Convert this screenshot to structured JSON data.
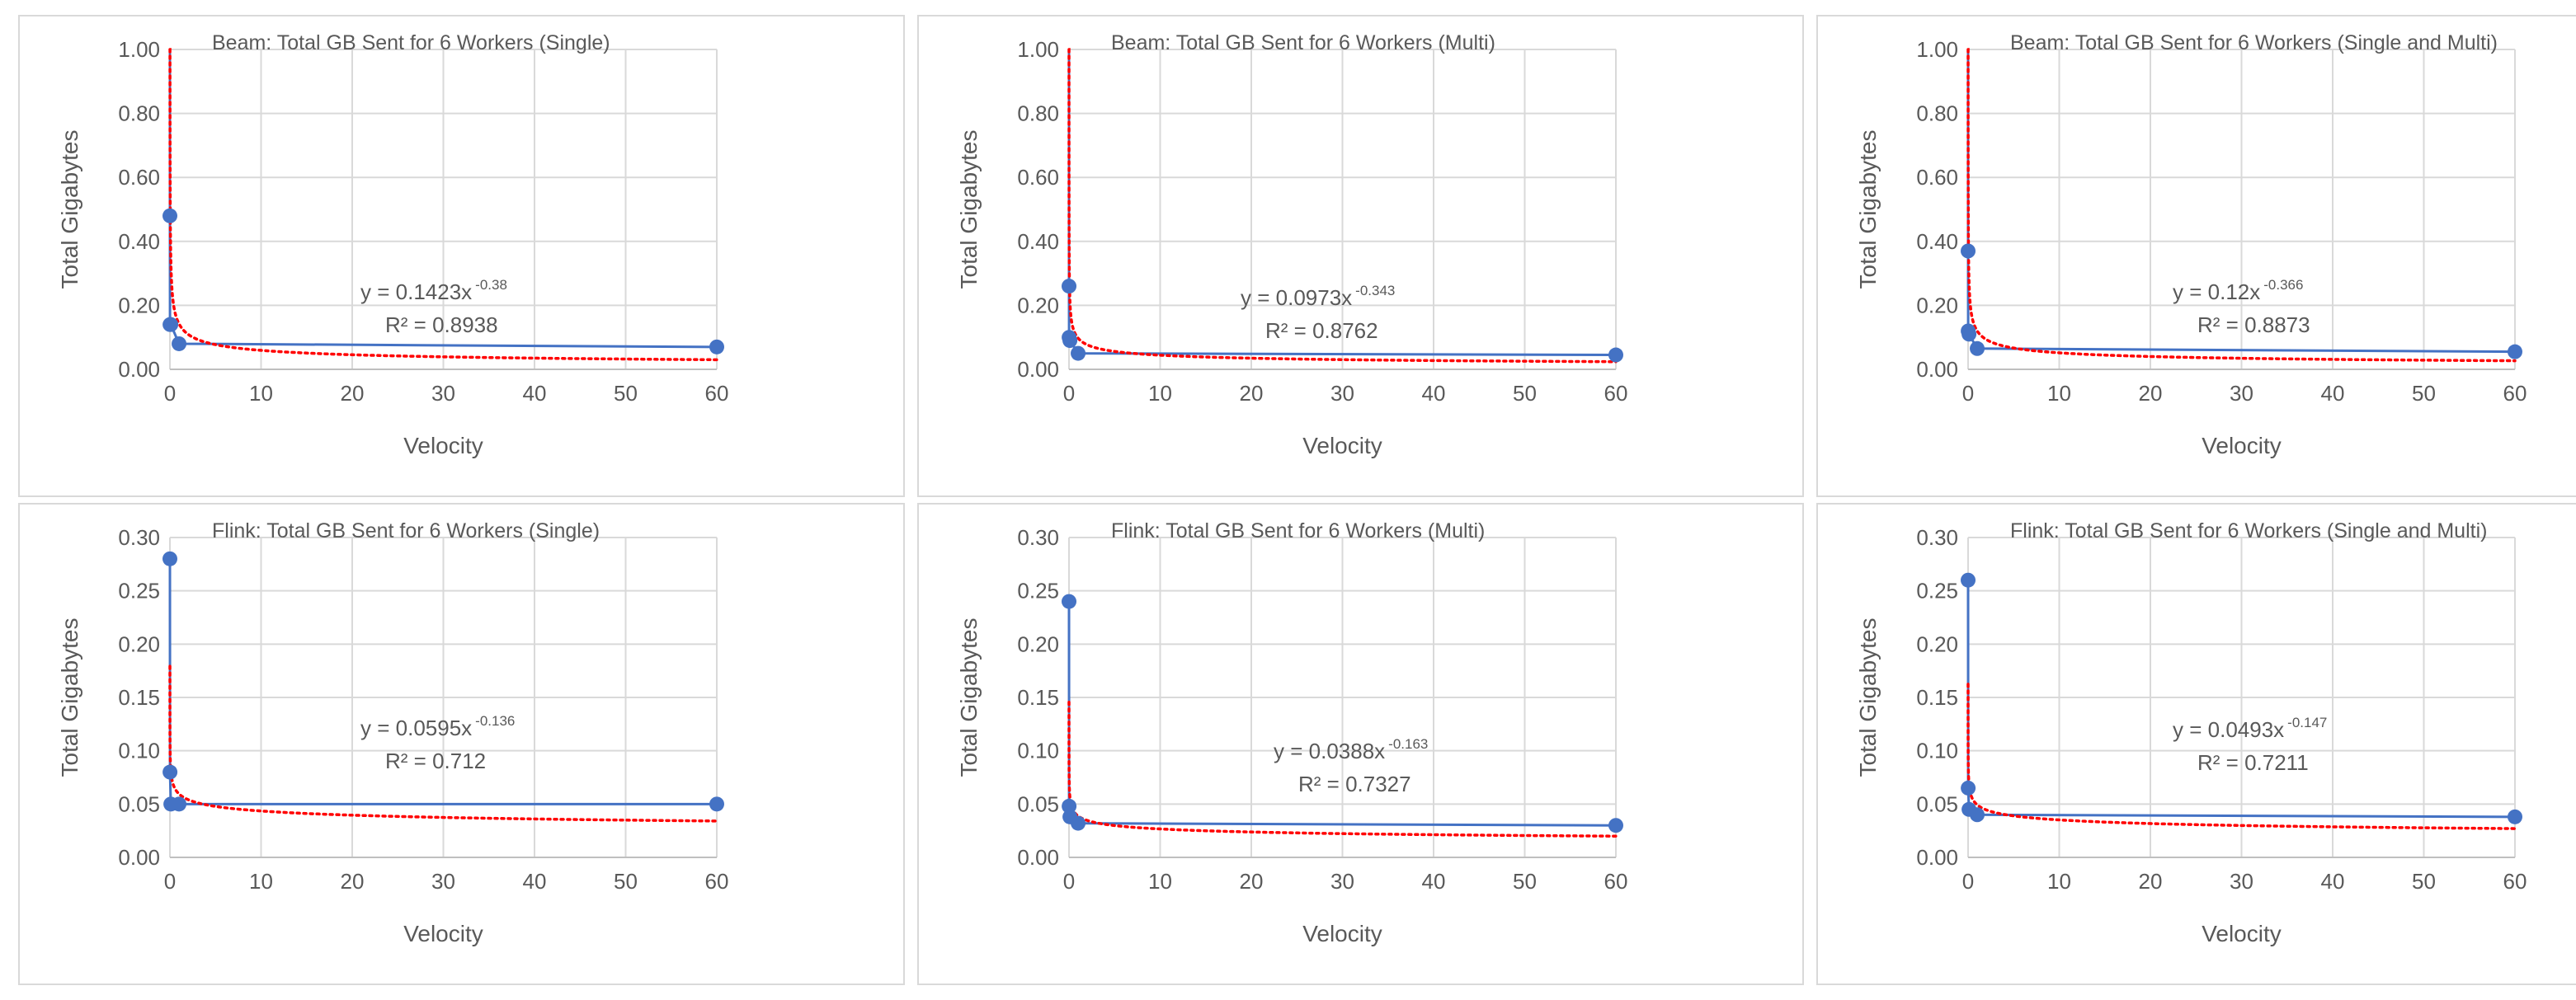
{
  "chart_data": [
    {
      "type": "scatter",
      "title": "Beam: Total GB Sent  for 6 Workers (Single)",
      "xlabel": "Velocity",
      "ylabel": "Total Gigabytes",
      "xlim": [
        0,
        60
      ],
      "ylim": [
        0,
        1.0
      ],
      "xticks": [
        "0",
        "10",
        "20",
        "30",
        "40",
        "50",
        "60"
      ],
      "yticks": [
        "0.00",
        "0.20",
        "0.40",
        "0.60",
        "0.80",
        "1.00"
      ],
      "series": [
        {
          "x": [
            0.0001,
            0.001,
            0.01,
            0.1,
            1,
            60
          ],
          "y": [
            1.0,
            0.48,
            0.14,
            0.14,
            0.08,
            0.07
          ],
          "color": "#4472c4"
        }
      ],
      "trendline": {
        "type": "power",
        "a": 0.1423,
        "b": -0.38,
        "color": "#ff0000"
      },
      "equation": {
        "main": "y = 0.1423x",
        "exponent": "-0.38",
        "r2": "R² = 0.8938"
      },
      "grid": true
    },
    {
      "type": "scatter",
      "title": "Beam: Total GB Sent  for 6 Workers (Multi)",
      "xlabel": "Velocity",
      "ylabel": "Total Gigabytes",
      "xlim": [
        0,
        60
      ],
      "ylim": [
        0,
        1.0
      ],
      "xticks": [
        "0",
        "10",
        "20",
        "30",
        "40",
        "50",
        "60"
      ],
      "yticks": [
        "0.00",
        "0.20",
        "0.40",
        "0.60",
        "0.80",
        "1.00"
      ],
      "series": [
        {
          "x": [
            0.0001,
            0.001,
            0.01,
            0.1,
            1,
            60
          ],
          "y": [
            1.0,
            0.26,
            0.1,
            0.09,
            0.05,
            0.045
          ],
          "color": "#4472c4"
        }
      ],
      "trendline": {
        "type": "power",
        "a": 0.0973,
        "b": -0.343,
        "color": "#ff0000"
      },
      "equation": {
        "main": "y = 0.0973x",
        "exponent": "-0.343",
        "r2": "R² = 0.8762"
      },
      "grid": true
    },
    {
      "type": "scatter",
      "title": "Beam: Total GB Sent  for 6 Workers (Single and Multi)",
      "xlabel": "Velocity",
      "ylabel": "Total Gigabytes",
      "xlim": [
        0,
        60
      ],
      "ylim": [
        0,
        1.0
      ],
      "xticks": [
        "0",
        "10",
        "20",
        "30",
        "40",
        "50",
        "60"
      ],
      "yticks": [
        "0.00",
        "0.20",
        "0.40",
        "0.60",
        "0.80",
        "1.00"
      ],
      "series": [
        {
          "x": [
            0.0001,
            0.001,
            0.01,
            0.1,
            1,
            60
          ],
          "y": [
            1.0,
            0.37,
            0.12,
            0.11,
            0.065,
            0.055
          ],
          "color": "#4472c4"
        }
      ],
      "trendline": {
        "type": "power",
        "a": 0.12,
        "b": -0.366,
        "color": "#ff0000"
      },
      "equation": {
        "main": "y = 0.12x",
        "exponent": "-0.366",
        "r2": "R² = 0.8873"
      },
      "grid": true
    },
    {
      "type": "scatter",
      "title": "Flink: Total GB Sent  for 6 Workers (Single)",
      "xlabel": "Velocity",
      "ylabel": "Total Gigabytes",
      "xlim": [
        0,
        60
      ],
      "ylim": [
        0,
        0.3
      ],
      "xticks": [
        "0",
        "10",
        "20",
        "30",
        "40",
        "50",
        "60"
      ],
      "yticks": [
        "0.00",
        "0.05",
        "0.10",
        "0.15",
        "0.20",
        "0.25",
        "0.30"
      ],
      "series": [
        {
          "x": [
            0.001,
            0.01,
            0.1,
            1,
            60
          ],
          "y": [
            0.28,
            0.08,
            0.05,
            0.05,
            0.05
          ],
          "color": "#4472c4"
        }
      ],
      "trendline": {
        "type": "power",
        "a": 0.0595,
        "b": -0.136,
        "color": "#ff0000"
      },
      "equation": {
        "main": "y = 0.0595x",
        "exponent": "-0.136",
        "r2": "R² = 0.712"
      },
      "grid": true
    },
    {
      "type": "scatter",
      "title": "Flink: Total GB Sent  for 6 Workers (Multi)",
      "xlabel": "Velocity",
      "ylabel": "Total Gigabytes",
      "xlim": [
        0,
        60
      ],
      "ylim": [
        0,
        0.3
      ],
      "xticks": [
        "0",
        "10",
        "20",
        "30",
        "40",
        "50",
        "60"
      ],
      "yticks": [
        "0.00",
        "0.05",
        "0.10",
        "0.15",
        "0.20",
        "0.25",
        "0.30"
      ],
      "series": [
        {
          "x": [
            0.001,
            0.01,
            0.1,
            1,
            60
          ],
          "y": [
            0.24,
            0.048,
            0.038,
            0.032,
            0.03
          ],
          "color": "#4472c4"
        }
      ],
      "trendline": {
        "type": "power",
        "a": 0.0388,
        "b": -0.163,
        "color": "#ff0000"
      },
      "equation": {
        "main": "y = 0.0388x",
        "exponent": "-0.163",
        "r2": "R² = 0.7327"
      },
      "grid": true
    },
    {
      "type": "scatter",
      "title": "Flink: Total GB Sent  for 6 Workers (Single and Multi)",
      "xlabel": "Velocity",
      "ylabel": "Total Gigabytes",
      "xlim": [
        0,
        60
      ],
      "ylim": [
        0,
        0.3
      ],
      "xticks": [
        "0",
        "10",
        "20",
        "30",
        "40",
        "50",
        "60"
      ],
      "yticks": [
        "0.00",
        "0.05",
        "0.10",
        "0.15",
        "0.20",
        "0.25",
        "0.30"
      ],
      "series": [
        {
          "x": [
            0.001,
            0.01,
            0.1,
            1,
            60
          ],
          "y": [
            0.26,
            0.065,
            0.045,
            0.04,
            0.038
          ],
          "color": "#4472c4"
        }
      ],
      "trendline": {
        "type": "power",
        "a": 0.0493,
        "b": -0.147,
        "color": "#ff0000"
      },
      "equation": {
        "main": "y = 0.0493x",
        "exponent": "-0.147",
        "r2": "R² = 0.7211"
      },
      "grid": true
    }
  ]
}
